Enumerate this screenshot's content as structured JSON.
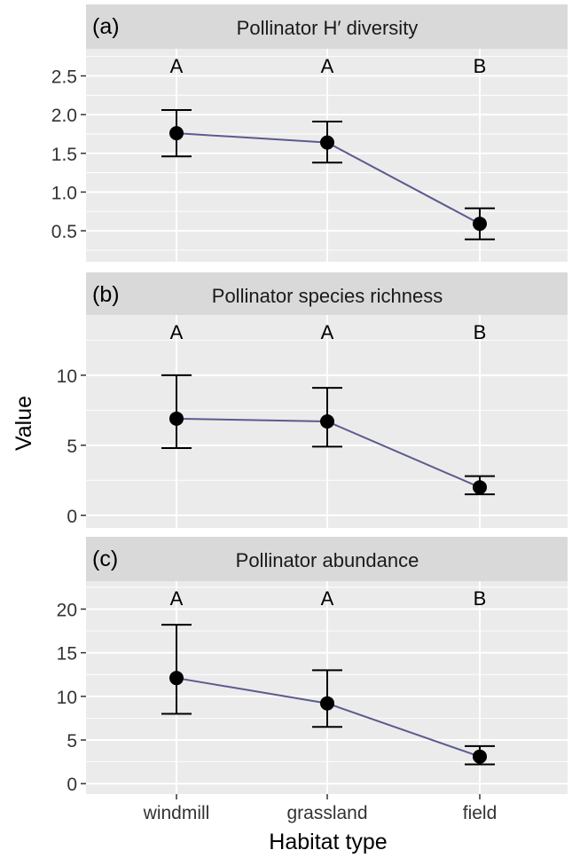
{
  "chart_data": {
    "type": "line",
    "xlabel": "Habitat type",
    "ylabel": "Value",
    "categories": [
      "windmill",
      "grassland",
      "field"
    ],
    "colors": {
      "line": "#5b5b8f",
      "point": "#000000",
      "panel_bg": "#ebebeb",
      "strip_bg": "#d9d9d9",
      "grid": "#ffffff"
    },
    "facets": [
      {
        "tag": "(a)",
        "title": "Pollinator H′ diversity",
        "ylim": [
          0.1,
          2.85
        ],
        "yticks": [
          0.5,
          1.0,
          1.5,
          2.0,
          2.5
        ],
        "ytick_labels": [
          "0.5",
          "1.0",
          "1.5",
          "2.0",
          "2.5"
        ],
        "values": [
          1.76,
          1.64,
          0.59
        ],
        "lower": [
          1.46,
          1.38,
          0.39
        ],
        "upper": [
          2.06,
          1.91,
          0.79
        ],
        "letters": [
          "A",
          "A",
          "B"
        ]
      },
      {
        "tag": "(b)",
        "title": "Pollinator species richness",
        "ylim": [
          -0.9,
          14.3
        ],
        "yticks": [
          0,
          5,
          10
        ],
        "ytick_labels": [
          "0",
          "5",
          "10"
        ],
        "values": [
          6.9,
          6.7,
          2.0
        ],
        "lower": [
          4.8,
          4.9,
          1.5
        ],
        "upper": [
          10.0,
          9.1,
          2.8
        ],
        "letters": [
          "A",
          "A",
          "B"
        ]
      },
      {
        "tag": "(c)",
        "title": "Pollinator abundance",
        "ylim": [
          -1.2,
          23.2
        ],
        "yticks": [
          0,
          5,
          10,
          15,
          20
        ],
        "ytick_labels": [
          "0",
          "5",
          "10",
          "15",
          "20"
        ],
        "values": [
          12.1,
          9.2,
          3.1
        ],
        "lower": [
          8.0,
          6.5,
          2.2
        ],
        "upper": [
          18.2,
          13.0,
          4.3
        ],
        "letters": [
          "A",
          "A",
          "B"
        ]
      }
    ]
  }
}
